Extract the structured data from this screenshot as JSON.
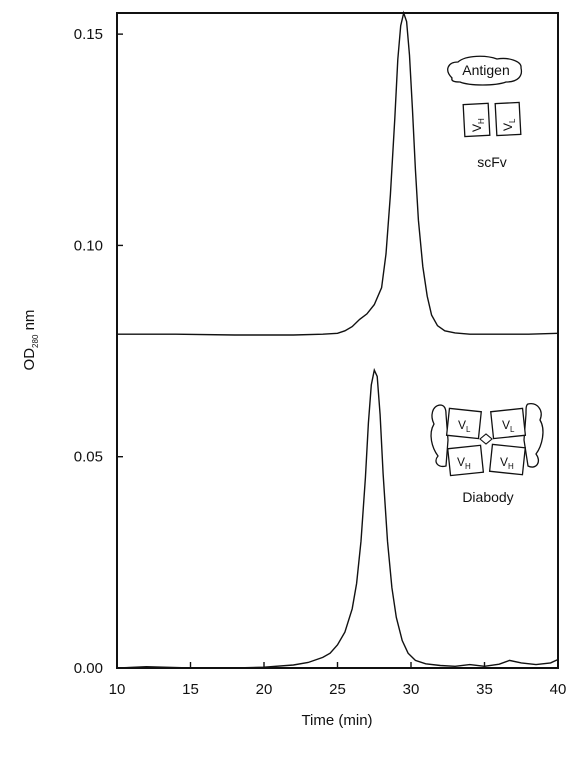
{
  "chart_data": {
    "type": "line",
    "title": "",
    "xlabel": "Time (min)",
    "ylabel": "OD",
    "ylabel_sub": "280",
    "ylabel_unit": " nm",
    "xlim": [
      10,
      40
    ],
    "ylim": [
      0,
      0.155
    ],
    "x_ticks": [
      10,
      15,
      20,
      25,
      30,
      35,
      40
    ],
    "x_tick_labels": [
      "10",
      "15",
      "20",
      "25",
      "30",
      "35",
      "40"
    ],
    "y_ticks": [
      0,
      0.05,
      0.1,
      0.15
    ],
    "y_tick_labels": [
      "0.00",
      "0.05",
      "0.10",
      "0.15"
    ],
    "grid": false,
    "series": [
      {
        "x": [
          10,
          14,
          18,
          22,
          24,
          25,
          25.5,
          26,
          26.5,
          27,
          27.5,
          28,
          28.3,
          28.6,
          28.9,
          29.1,
          29.3,
          29.5,
          29.7,
          29.9,
          30.1,
          30.3,
          30.5,
          30.8,
          31.1,
          31.4,
          31.8,
          32.3,
          33,
          34,
          36,
          38,
          40
        ],
        "values": [
          0.079,
          0.079,
          0.0788,
          0.0788,
          0.079,
          0.0792,
          0.0798,
          0.0808,
          0.0825,
          0.0838,
          0.086,
          0.09,
          0.098,
          0.112,
          0.13,
          0.144,
          0.152,
          0.155,
          0.153,
          0.145,
          0.132,
          0.118,
          0.106,
          0.095,
          0.088,
          0.0835,
          0.081,
          0.0798,
          0.0793,
          0.079,
          0.079,
          0.079,
          0.0792
        ]
      },
      {
        "x": [
          10,
          12,
          15,
          18,
          20,
          22,
          23,
          24,
          24.5,
          25,
          25.5,
          26,
          26.3,
          26.6,
          26.9,
          27.1,
          27.3,
          27.5,
          27.7,
          27.9,
          28.1,
          28.4,
          28.7,
          29,
          29.4,
          29.8,
          30.3,
          31,
          32,
          33,
          34,
          35,
          36,
          36.7,
          37.5,
          38.5,
          39.5,
          40
        ],
        "values": [
          0.0,
          0.0003,
          0.0,
          0.0,
          0.0002,
          0.0007,
          0.0013,
          0.0025,
          0.0035,
          0.0055,
          0.0085,
          0.014,
          0.02,
          0.03,
          0.045,
          0.058,
          0.067,
          0.0705,
          0.069,
          0.06,
          0.046,
          0.03,
          0.019,
          0.012,
          0.0065,
          0.0035,
          0.0018,
          0.001,
          0.0006,
          0.0004,
          0.0008,
          0.0004,
          0.0009,
          0.0018,
          0.0012,
          0.0008,
          0.0012,
          0.002
        ]
      }
    ],
    "annotations": [
      {
        "text": "Antigen",
        "vh": "V",
        "vh_sub": "H",
        "vl": "V",
        "vl_sub": "L",
        "caption": "scFv",
        "x": 34.6,
        "y": 0.146
      },
      {
        "vl": "V",
        "vl_sub": "L",
        "vh": "V",
        "vh_sub": "H",
        "caption": "Diabody",
        "x": 34.6,
        "y": 0.06
      }
    ]
  }
}
